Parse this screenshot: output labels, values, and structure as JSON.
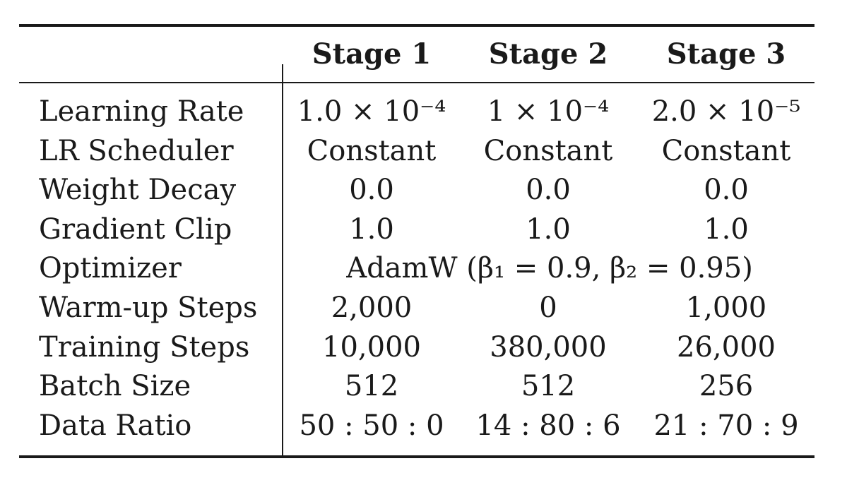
{
  "table": {
    "headers": [
      "Stage 1",
      "Stage 2",
      "Stage 3"
    ],
    "rows": [
      {
        "label": "Learning Rate",
        "values": [
          "1.0 × 10⁻⁴",
          "1 × 10⁻⁴",
          "2.0 × 10⁻⁵"
        ]
      },
      {
        "label": "LR Scheduler",
        "values": [
          "Constant",
          "Constant",
          "Constant"
        ]
      },
      {
        "label": "Weight Decay",
        "values": [
          "0.0",
          "0.0",
          "0.0"
        ]
      },
      {
        "label": "Gradient Clip",
        "values": [
          "1.0",
          "1.0",
          "1.0"
        ]
      },
      {
        "label": "Optimizer",
        "span": "AdamW (β₁ = 0.9, β₂ = 0.95)"
      },
      {
        "label": "Warm-up Steps",
        "values": [
          "2,000",
          "0",
          "1,000"
        ]
      },
      {
        "label": "Training Steps",
        "values": [
          "10,000",
          "380,000",
          "26,000"
        ]
      },
      {
        "label": "Batch Size",
        "values": [
          "512",
          "512",
          "256"
        ]
      },
      {
        "label": "Data Ratio",
        "values": [
          "50 : 50 : 0",
          "14 : 80 : 6",
          "21 : 70 : 9"
        ]
      }
    ]
  }
}
